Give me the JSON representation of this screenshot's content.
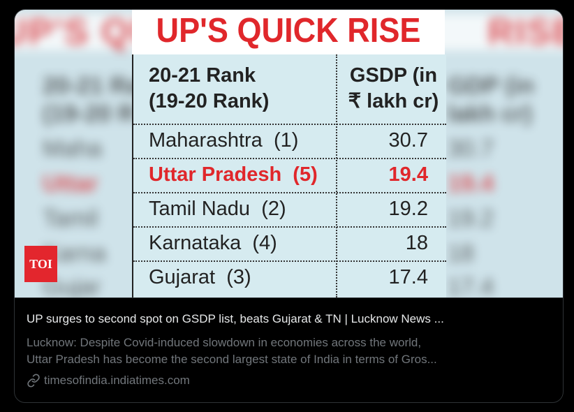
{
  "card": {
    "image": {
      "title": "UP'S QUICK RISE",
      "header_left": [
        "20-21 Rank",
        "(19-20 Rank)"
      ],
      "header_right": [
        "GSDP (in",
        "₹ lakh cr)"
      ],
      "rows": [
        {
          "state": "Maharashtra",
          "rank": "(1)",
          "value": "30.7"
        },
        {
          "state": "Uttar Pradesh",
          "rank": "(5)",
          "value": "19.4"
        },
        {
          "state": "Tamil Nadu",
          "rank": "(2)",
          "value": "19.2"
        },
        {
          "state": "Karnataka",
          "rank": "(4)",
          "value": "18"
        },
        {
          "state": "Gujarat",
          "rank": "(3)",
          "value": "17.4"
        }
      ],
      "badge": "TOI"
    },
    "headline": "UP surges to second spot on GSDP list, beats Gujarat & TN | Lucknow News ...",
    "description_line1": "Lucknow: Despite Covid-induced slowdown in economies across the world,",
    "description_line2": "Uttar Pradesh has become the second largest state of India in terms of Gros...",
    "domain": "timesofindia.indiatimes.com"
  },
  "colors": {
    "accent_red": "#e0272b",
    "table_bg": "#d6ebf0",
    "muted_text": "#71767b"
  },
  "icons": {
    "link": "link-icon"
  }
}
